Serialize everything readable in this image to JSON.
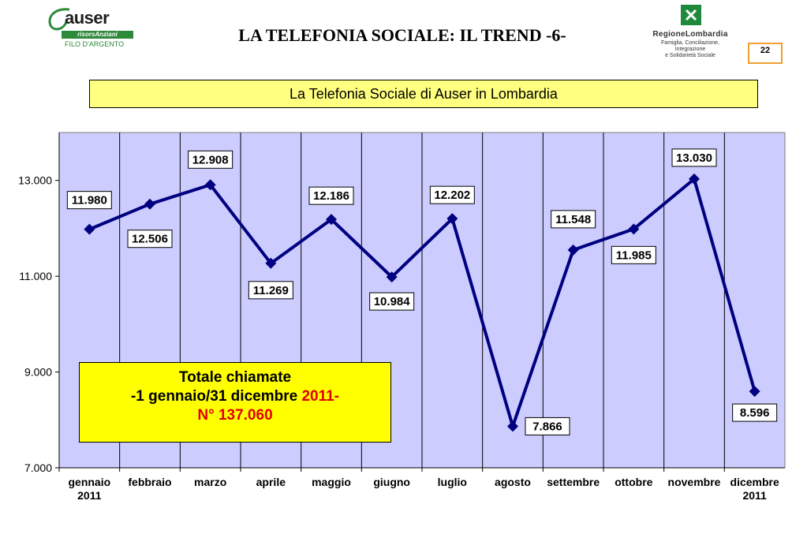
{
  "header": {
    "logo_auser": {
      "name": "auser",
      "tagline": "risorsAnziani",
      "sub": "FILO D'ARGENTO"
    },
    "title": "LA TELEFONIA SOCIALE: IL TREND  -6-",
    "logo_region": {
      "name": "RegioneLombardia",
      "line1": "Famiglia, Conciliazione,",
      "line2": "Integrazione",
      "line3": "e Solidarietà Sociale"
    },
    "page_number": "22"
  },
  "subtitle": "La Telefonia Sociale di Auser in Lombardia",
  "totals": {
    "line1": "Totale chiamate",
    "line2": "-1 gennaio/31 dicembre ",
    "line2_red": "2011-",
    "line3": "N° 137.060"
  },
  "colors": {
    "plot_bg": "#ccccff",
    "line": "#000080",
    "highlight": "#ffff00",
    "accent_red": "#e00000"
  },
  "chart_data": {
    "type": "line",
    "categories": [
      "gennaio 2011",
      "febbraio",
      "marzo",
      "aprile",
      "maggio",
      "giugno",
      "luglio",
      "agosto",
      "settembre",
      "ottobre",
      "novembre",
      "dicembre 2011"
    ],
    "values": [
      11980,
      12506,
      12908,
      11269,
      12186,
      10984,
      12202,
      7866,
      11548,
      11985,
      13030,
      8596
    ],
    "data_labels": [
      "11.980",
      "12.506",
      "12.908",
      "11.269",
      "12.186",
      "10.984",
      "12.202",
      "7.866",
      "11.548",
      "11.985",
      "13.030",
      "8.596"
    ],
    "y_ticks": [
      7000,
      9000,
      11000,
      13000
    ],
    "y_tick_labels": [
      "7.000",
      "9.000",
      "11.000",
      "13.000"
    ],
    "ylim": [
      7000,
      14000
    ],
    "grid": "vertical",
    "legend": "none"
  }
}
